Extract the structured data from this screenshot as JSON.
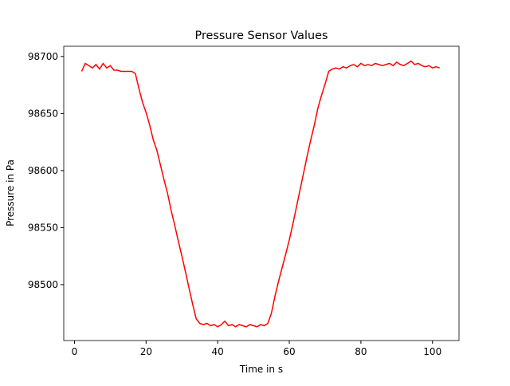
{
  "chart_data": {
    "type": "line",
    "title": "Pressure Sensor Values",
    "x_label": "Time in s",
    "y_label": "Pressure in Pa",
    "color": "#ff0000",
    "x": [
      2,
      3,
      4,
      5,
      6,
      7,
      8,
      9,
      10,
      11,
      12,
      13,
      14,
      15,
      16,
      17,
      18,
      19,
      20,
      21,
      22,
      23,
      24,
      25,
      26,
      27,
      28,
      29,
      30,
      31,
      32,
      33,
      34,
      35,
      36,
      37,
      38,
      39,
      40,
      41,
      42,
      43,
      44,
      45,
      46,
      47,
      48,
      49,
      50,
      51,
      52,
      53,
      54,
      55,
      56,
      57,
      58,
      59,
      60,
      61,
      62,
      63,
      64,
      65,
      66,
      67,
      68,
      69,
      70,
      71,
      72,
      73,
      74,
      75,
      76,
      77,
      78,
      79,
      80,
      81,
      82,
      83,
      84,
      85,
      86,
      87,
      88,
      89,
      90,
      91,
      92,
      93,
      94,
      95,
      96,
      97,
      98,
      99,
      100,
      101,
      102
    ],
    "values": [
      98687,
      98694,
      98692,
      98690,
      98693,
      98689,
      98694,
      98690,
      98692,
      98688,
      98688,
      98687,
      98687,
      98687,
      98687,
      98685,
      98672,
      98660,
      98651,
      98640,
      98627,
      98618,
      98605,
      98592,
      98580,
      98565,
      98552,
      98538,
      98525,
      98511,
      98497,
      98483,
      98470,
      98466,
      98465,
      98466,
      98464,
      98465,
      98463,
      98465,
      98468,
      98464,
      98465,
      98463,
      98465,
      98464,
      98463,
      98465,
      98464,
      98463,
      98465,
      98464,
      98466,
      98475,
      98490,
      98503,
      98515,
      98527,
      98539,
      98553,
      98568,
      98583,
      98598,
      98613,
      98627,
      98640,
      98655,
      98666,
      98676,
      98687,
      98689,
      98690,
      98689,
      98691,
      98690,
      98692,
      98693,
      98691,
      98694,
      98692,
      98693,
      98692,
      98694,
      98693,
      98692,
      98693,
      98694,
      98692,
      98695,
      98693,
      98692,
      98694,
      98696,
      98693,
      98694,
      98692,
      98691,
      98692,
      98690,
      98691,
      98690
    ],
    "xlim": [
      -3,
      107.4
    ],
    "ylim": [
      98451,
      98709
    ],
    "xticks": [
      0,
      20,
      40,
      60,
      80,
      100
    ],
    "yticks": [
      98500,
      98550,
      98600,
      98650,
      98700
    ]
  }
}
